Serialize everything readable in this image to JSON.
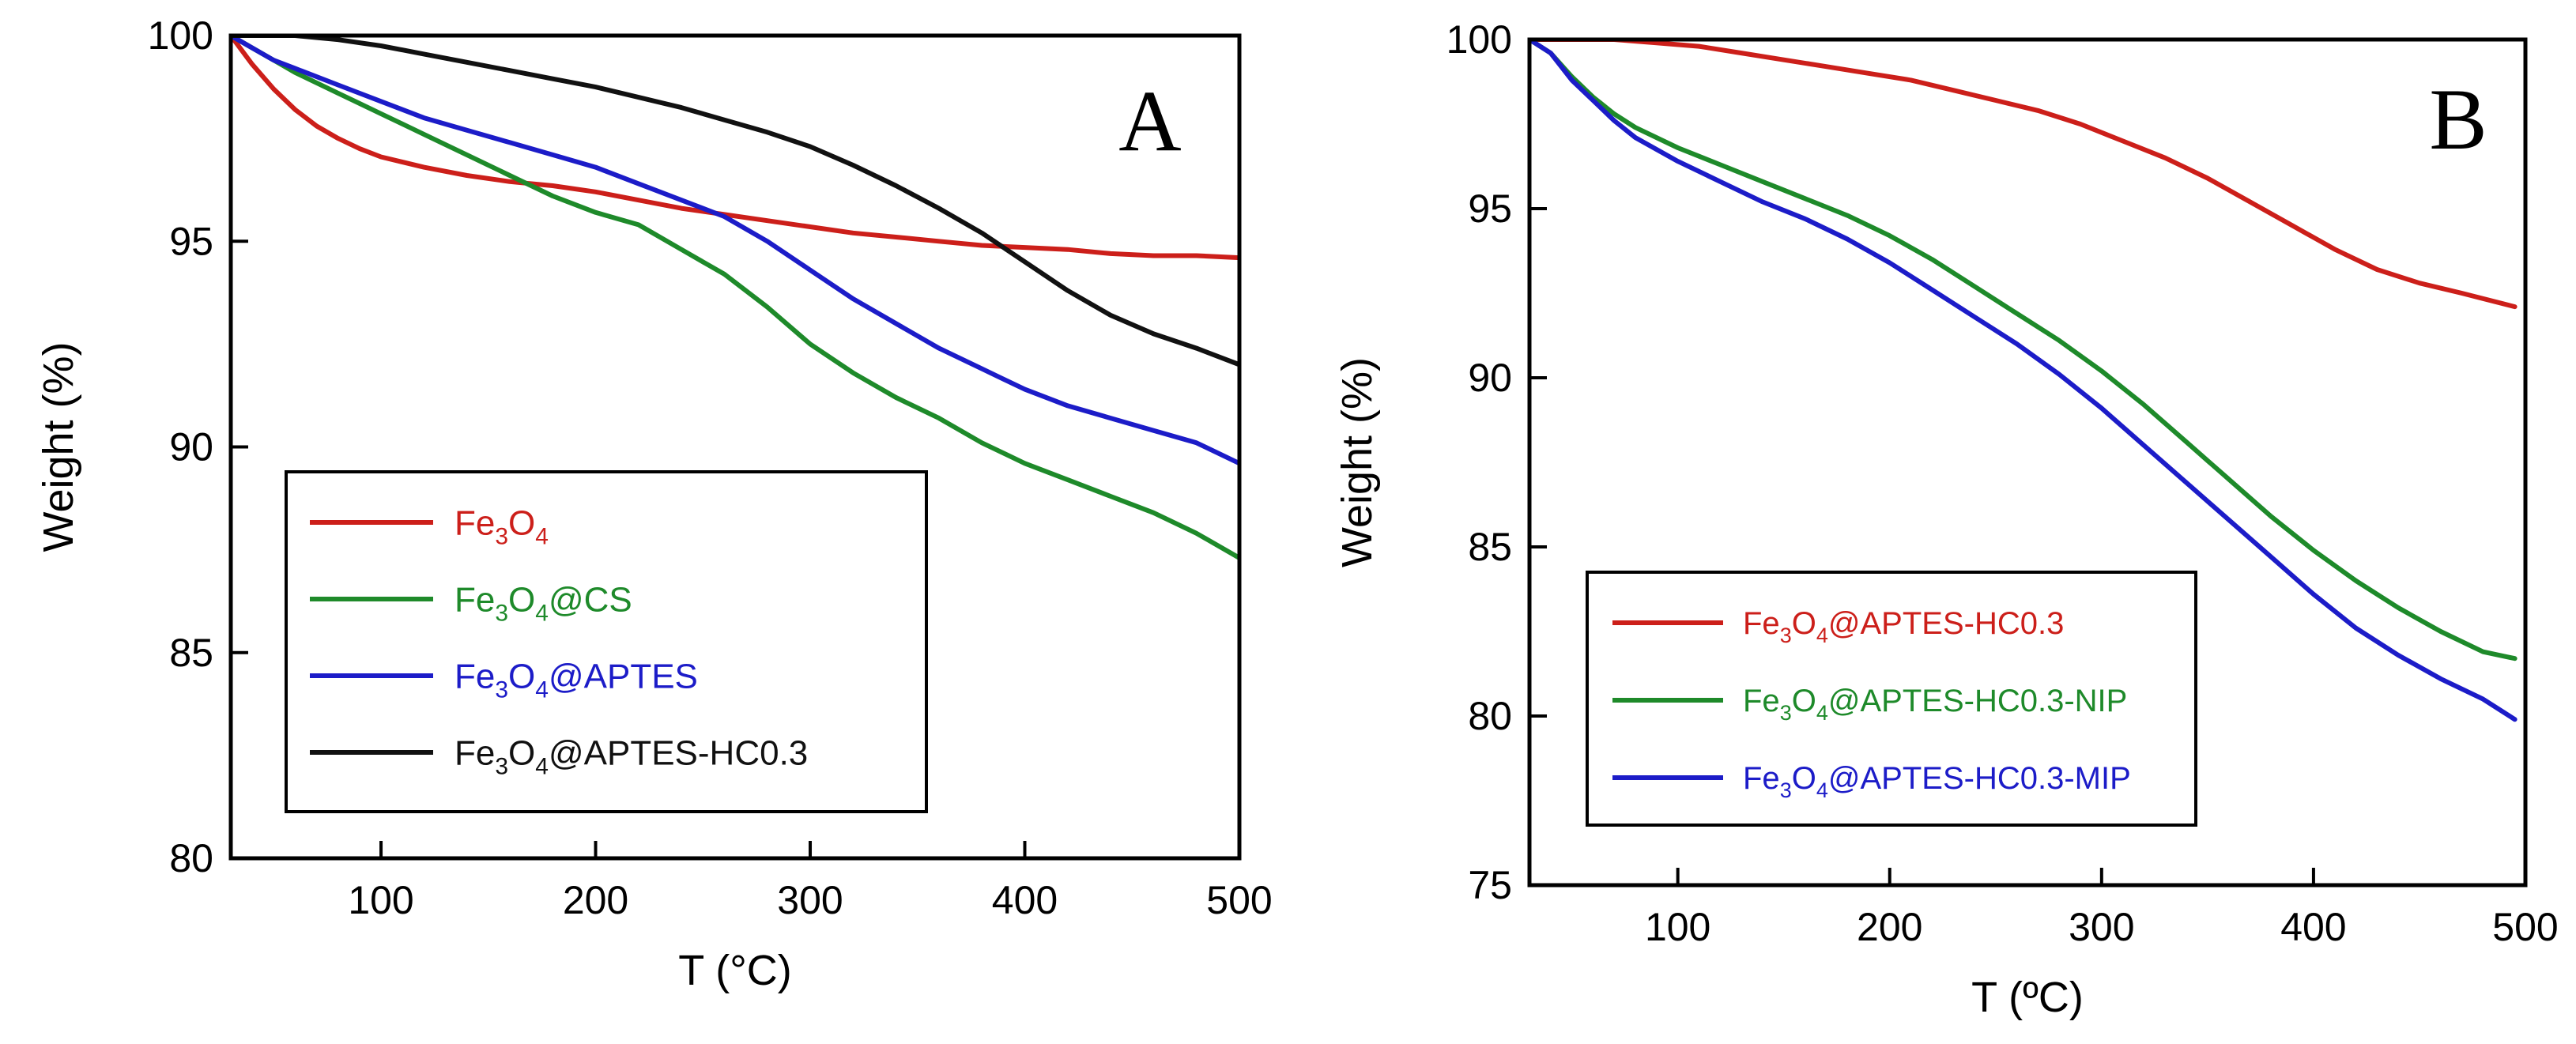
{
  "colors": {
    "red": "#cc1f1a",
    "green": "#1e8a2a",
    "blue": "#1c1cc8",
    "black": "#111111"
  },
  "chart_data": [
    {
      "type": "line",
      "panel_label": "A",
      "xlabel": "T (°C)",
      "ylabel": "Weight (%)",
      "xlim": [
        30,
        500
      ],
      "ylim": [
        80,
        100
      ],
      "xticks": [
        100,
        200,
        300,
        400,
        500
      ],
      "yticks": [
        80,
        85,
        90,
        95,
        100
      ],
      "legend_position": "bottom-left",
      "series": [
        {
          "name": "Fe3O4",
          "legend": [
            {
              "t": "Fe"
            },
            {
              "t": "3",
              "sub": true
            },
            {
              "t": "O"
            },
            {
              "t": "4",
              "sub": true
            }
          ],
          "color": "#cc1f1a",
          "x": [
            30,
            40,
            50,
            60,
            70,
            80,
            90,
            100,
            120,
            140,
            160,
            180,
            200,
            220,
            240,
            260,
            280,
            300,
            320,
            340,
            360,
            380,
            400,
            420,
            440,
            460,
            480,
            500
          ],
          "y": [
            100,
            99.3,
            98.7,
            98.2,
            97.8,
            97.5,
            97.25,
            97.05,
            96.8,
            96.6,
            96.45,
            96.35,
            96.2,
            96.0,
            95.8,
            95.65,
            95.5,
            95.35,
            95.2,
            95.1,
            95.0,
            94.9,
            94.85,
            94.8,
            94.7,
            94.65,
            94.65,
            94.6
          ]
        },
        {
          "name": "Fe3O4@CS",
          "legend": [
            {
              "t": "Fe"
            },
            {
              "t": "3",
              "sub": true
            },
            {
              "t": "O"
            },
            {
              "t": "4",
              "sub": true
            },
            {
              "t": "@CS"
            }
          ],
          "color": "#1e8a2a",
          "x": [
            30,
            40,
            50,
            60,
            80,
            100,
            120,
            140,
            160,
            180,
            200,
            220,
            240,
            260,
            280,
            300,
            320,
            340,
            360,
            380,
            400,
            420,
            440,
            460,
            480,
            500
          ],
          "y": [
            100,
            99.7,
            99.4,
            99.1,
            98.6,
            98.1,
            97.6,
            97.1,
            96.6,
            96.1,
            95.7,
            95.4,
            94.8,
            94.2,
            93.4,
            92.5,
            91.8,
            91.2,
            90.7,
            90.1,
            89.6,
            89.2,
            88.8,
            88.4,
            87.9,
            87.3
          ]
        },
        {
          "name": "Fe3O4@APTES",
          "legend": [
            {
              "t": "Fe"
            },
            {
              "t": "3",
              "sub": true
            },
            {
              "t": "O"
            },
            {
              "t": "4",
              "sub": true
            },
            {
              "t": "@APTES"
            }
          ],
          "color": "#1c1cc8",
          "x": [
            30,
            40,
            50,
            60,
            80,
            100,
            120,
            140,
            160,
            180,
            200,
            220,
            240,
            260,
            280,
            300,
            320,
            340,
            360,
            380,
            400,
            420,
            440,
            460,
            480,
            500
          ],
          "y": [
            100,
            99.7,
            99.4,
            99.2,
            98.8,
            98.4,
            98.0,
            97.7,
            97.4,
            97.1,
            96.8,
            96.4,
            96.0,
            95.6,
            95.0,
            94.3,
            93.6,
            93.0,
            92.4,
            91.9,
            91.4,
            91.0,
            90.7,
            90.4,
            90.1,
            89.6
          ]
        },
        {
          "name": "Fe3O4@APTES-HC0.3",
          "legend": [
            {
              "t": "Fe"
            },
            {
              "t": "3",
              "sub": true
            },
            {
              "t": "O"
            },
            {
              "t": "4",
              "sub": true
            },
            {
              "t": "@APTES-HC0.3"
            }
          ],
          "color": "#111111",
          "x": [
            30,
            40,
            50,
            60,
            80,
            100,
            120,
            140,
            160,
            180,
            200,
            220,
            240,
            260,
            280,
            300,
            320,
            340,
            360,
            380,
            400,
            420,
            440,
            460,
            480,
            500
          ],
          "y": [
            100,
            100,
            100,
            100,
            99.9,
            99.75,
            99.55,
            99.35,
            99.15,
            98.95,
            98.75,
            98.5,
            98.25,
            97.95,
            97.65,
            97.3,
            96.85,
            96.35,
            95.8,
            95.2,
            94.5,
            93.8,
            93.2,
            92.75,
            92.4,
            92.0
          ]
        }
      ]
    },
    {
      "type": "line",
      "panel_label": "B",
      "xlabel": "T (ºC)",
      "ylabel": "Weight (%)",
      "xlim": [
        30,
        500
      ],
      "ylim": [
        75,
        100
      ],
      "xticks": [
        100,
        200,
        300,
        400,
        500
      ],
      "yticks": [
        75,
        80,
        85,
        90,
        95,
        100
      ],
      "legend_position": "bottom-left",
      "series": [
        {
          "name": "Fe3O4@APTES-HC0.3",
          "legend": [
            {
              "t": "Fe"
            },
            {
              "t": "3",
              "sub": true
            },
            {
              "t": "O"
            },
            {
              "t": "4",
              "sub": true
            },
            {
              "t": "@APTES-HC0.3"
            }
          ],
          "color": "#cc1f1a",
          "x": [
            30,
            50,
            70,
            90,
            110,
            130,
            150,
            170,
            190,
            210,
            230,
            250,
            270,
            290,
            310,
            330,
            350,
            370,
            390,
            410,
            430,
            450,
            470,
            495
          ],
          "y": [
            100,
            100,
            100,
            99.9,
            99.8,
            99.6,
            99.4,
            99.2,
            99.0,
            98.8,
            98.5,
            98.2,
            97.9,
            97.5,
            97.0,
            96.5,
            95.9,
            95.2,
            94.5,
            93.8,
            93.2,
            92.8,
            92.5,
            92.1
          ]
        },
        {
          "name": "Fe3O4@APTES-HC0.3-NIP",
          "legend": [
            {
              "t": "Fe"
            },
            {
              "t": "3",
              "sub": true
            },
            {
              "t": "O"
            },
            {
              "t": "4",
              "sub": true
            },
            {
              "t": "@APTES-HC0.3-NIP"
            }
          ],
          "color": "#1e8a2a",
          "x": [
            30,
            40,
            50,
            60,
            70,
            80,
            100,
            120,
            140,
            160,
            180,
            200,
            220,
            240,
            260,
            280,
            300,
            320,
            340,
            360,
            380,
            400,
            420,
            440,
            460,
            480,
            495
          ],
          "y": [
            100,
            99.6,
            98.9,
            98.3,
            97.8,
            97.4,
            96.8,
            96.3,
            95.8,
            95.3,
            94.8,
            94.2,
            93.5,
            92.7,
            91.9,
            91.1,
            90.2,
            89.2,
            88.1,
            87.0,
            85.9,
            84.9,
            84.0,
            83.2,
            82.5,
            81.9,
            81.7
          ]
        },
        {
          "name": "Fe3O4@APTES-HC0.3-MIP",
          "legend": [
            {
              "t": "Fe"
            },
            {
              "t": "3",
              "sub": true
            },
            {
              "t": "O"
            },
            {
              "t": "4",
              "sub": true
            },
            {
              "t": "@APTES-HC0.3-MIP"
            }
          ],
          "color": "#1c1cc8",
          "x": [
            30,
            40,
            50,
            60,
            70,
            80,
            100,
            120,
            140,
            160,
            180,
            200,
            220,
            240,
            260,
            280,
            300,
            320,
            340,
            360,
            380,
            400,
            420,
            440,
            460,
            480,
            495
          ],
          "y": [
            100,
            99.6,
            98.8,
            98.2,
            97.6,
            97.1,
            96.4,
            95.8,
            95.2,
            94.7,
            94.1,
            93.4,
            92.6,
            91.8,
            91.0,
            90.1,
            89.1,
            88.0,
            86.9,
            85.8,
            84.7,
            83.6,
            82.6,
            81.8,
            81.1,
            80.5,
            79.9
          ]
        }
      ]
    }
  ]
}
